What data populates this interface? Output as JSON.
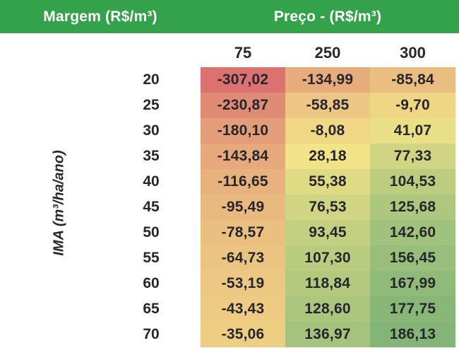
{
  "header": {
    "margem_label": "Margem (R$/m³)",
    "preco_label": "Preço - (R$/m³)"
  },
  "axis_label": "IMA (m³/ha/ano)",
  "colors": {
    "banner_green": "#34A14B",
    "text_dark": "#26262C",
    "scale_min_color": "#DB7270",
    "scale_mid_color": "#F2E388",
    "scale_max_color": "#82B577"
  },
  "chart_data": {
    "type": "heatmap",
    "title": "Margem (R$/m³)",
    "col_group_label": "Preço - (R$/m³)",
    "row_group_label": "IMA (m³/ha/ano)",
    "columns": [
      "75",
      "250",
      "300"
    ],
    "rows": [
      "20",
      "25",
      "30",
      "35",
      "40",
      "45",
      "50",
      "55",
      "60",
      "65",
      "70"
    ],
    "values_display": [
      [
        "-307,02",
        "-134,99",
        "-85,84"
      ],
      [
        "-230,87",
        "-58,85",
        "-9,70"
      ],
      [
        "-180,10",
        "-8,08",
        "41,07"
      ],
      [
        "-143,84",
        "28,18",
        "77,33"
      ],
      [
        "-116,65",
        "55,38",
        "104,53"
      ],
      [
        "-95,49",
        "76,53",
        "125,68"
      ],
      [
        "-78,57",
        "93,45",
        "142,60"
      ],
      [
        "-64,73",
        "107,30",
        "156,45"
      ],
      [
        "-53,19",
        "118,84",
        "167,99"
      ],
      [
        "-43,43",
        "128,60",
        "177,75"
      ],
      [
        "-35,06",
        "136,97",
        "186,13"
      ]
    ],
    "color_scale": {
      "min": -307.02,
      "mid": 28.18,
      "max": 186.13,
      "min_color": "#DB7270",
      "mid_color": "#F2E388",
      "max_color": "#82B577"
    },
    "legend_position": "none",
    "grid": false
  }
}
